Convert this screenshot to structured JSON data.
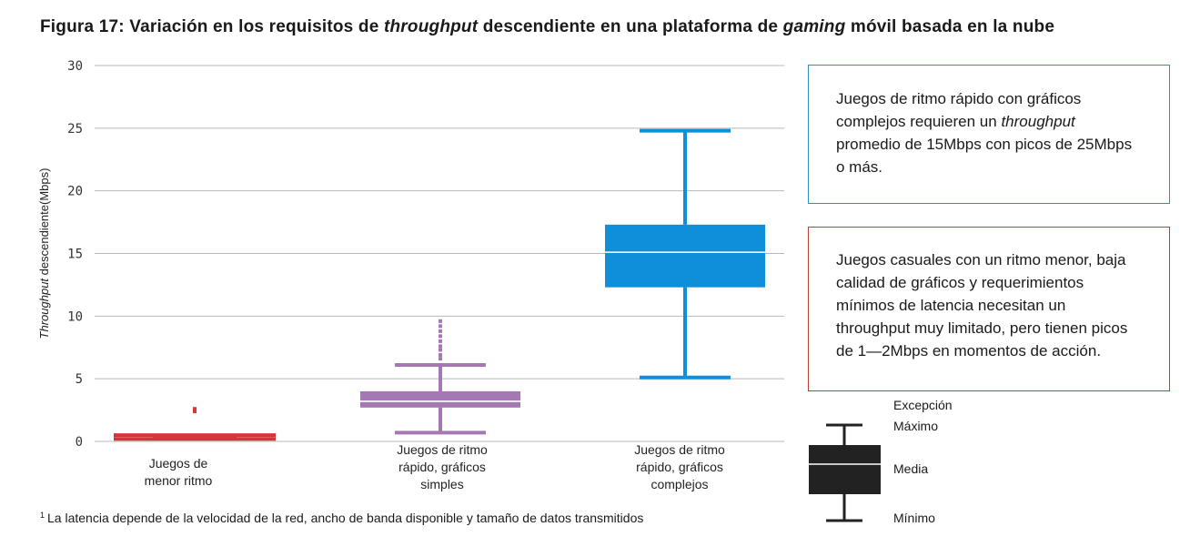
{
  "title": {
    "prefix": "Figura 17: Variación en los requisitos de ",
    "em1": "throughput",
    "middle": " descendiente en una plataforma de ",
    "em2": "gaming",
    "suffix": " móvil basada en la nube"
  },
  "colors": {
    "grid": "#b9b9b9",
    "red": "#d6343a",
    "purple": "#a577b3",
    "blue": "#0f8fd8",
    "legend": "#222222"
  },
  "chart_data": {
    "type": "box",
    "ylabel_em": "Throughput",
    "ylabel_rest": " descendiente(Mbps)",
    "ylim": [
      0,
      30
    ],
    "yticks": [
      0,
      5,
      10,
      15,
      20,
      25,
      30
    ],
    "grid": true,
    "categories": [
      [
        "Juegos de",
        "menor ritmo"
      ],
      [
        "Juegos de ritmo",
        "rápido, gráficos",
        "simples"
      ],
      [
        "Juegos de ritmo",
        "rápido, gráficos",
        "complejos"
      ]
    ],
    "boxes": [
      {
        "min": 0.2,
        "q1": 0.2,
        "median": 0.3,
        "q3": 0.45,
        "max": 0.5,
        "outliers": [
          2.4,
          2.6
        ]
      },
      {
        "min": 0.7,
        "q1": 2.7,
        "median": 3.2,
        "q3": 4.0,
        "max": 6.1,
        "outliers": [
          6.6,
          6.9,
          7.3,
          7.6,
          8.0,
          8.4,
          8.8,
          9.2,
          9.6
        ]
      },
      {
        "min": 5.1,
        "q1": 12.3,
        "median": 15.1,
        "q3": 17.3,
        "max": 24.8,
        "outliers": []
      }
    ]
  },
  "notes": {
    "blue": {
      "text_a": "Juegos de ritmo rápido con gráficos complejos requieren un ",
      "em": "throughput",
      "text_b": " promedio de 15Mbps con picos de 25Mbps o más."
    },
    "red": {
      "text": "Juegos casuales con un ritmo menor, baja calidad de gráficos y requerimientos mínimos de latencia necesitan un throughput muy limitado, pero tienen picos de 1—2Mbps en momentos de acción."
    }
  },
  "legend": {
    "exception": "Excepción",
    "max": "Máximo",
    "median": "Media",
    "min": "Mínimo"
  },
  "footnote": {
    "mark": "1",
    "text": "La latencia depende de la velocidad de la red, ancho de banda disponible y tamaño de datos transmitidos"
  }
}
